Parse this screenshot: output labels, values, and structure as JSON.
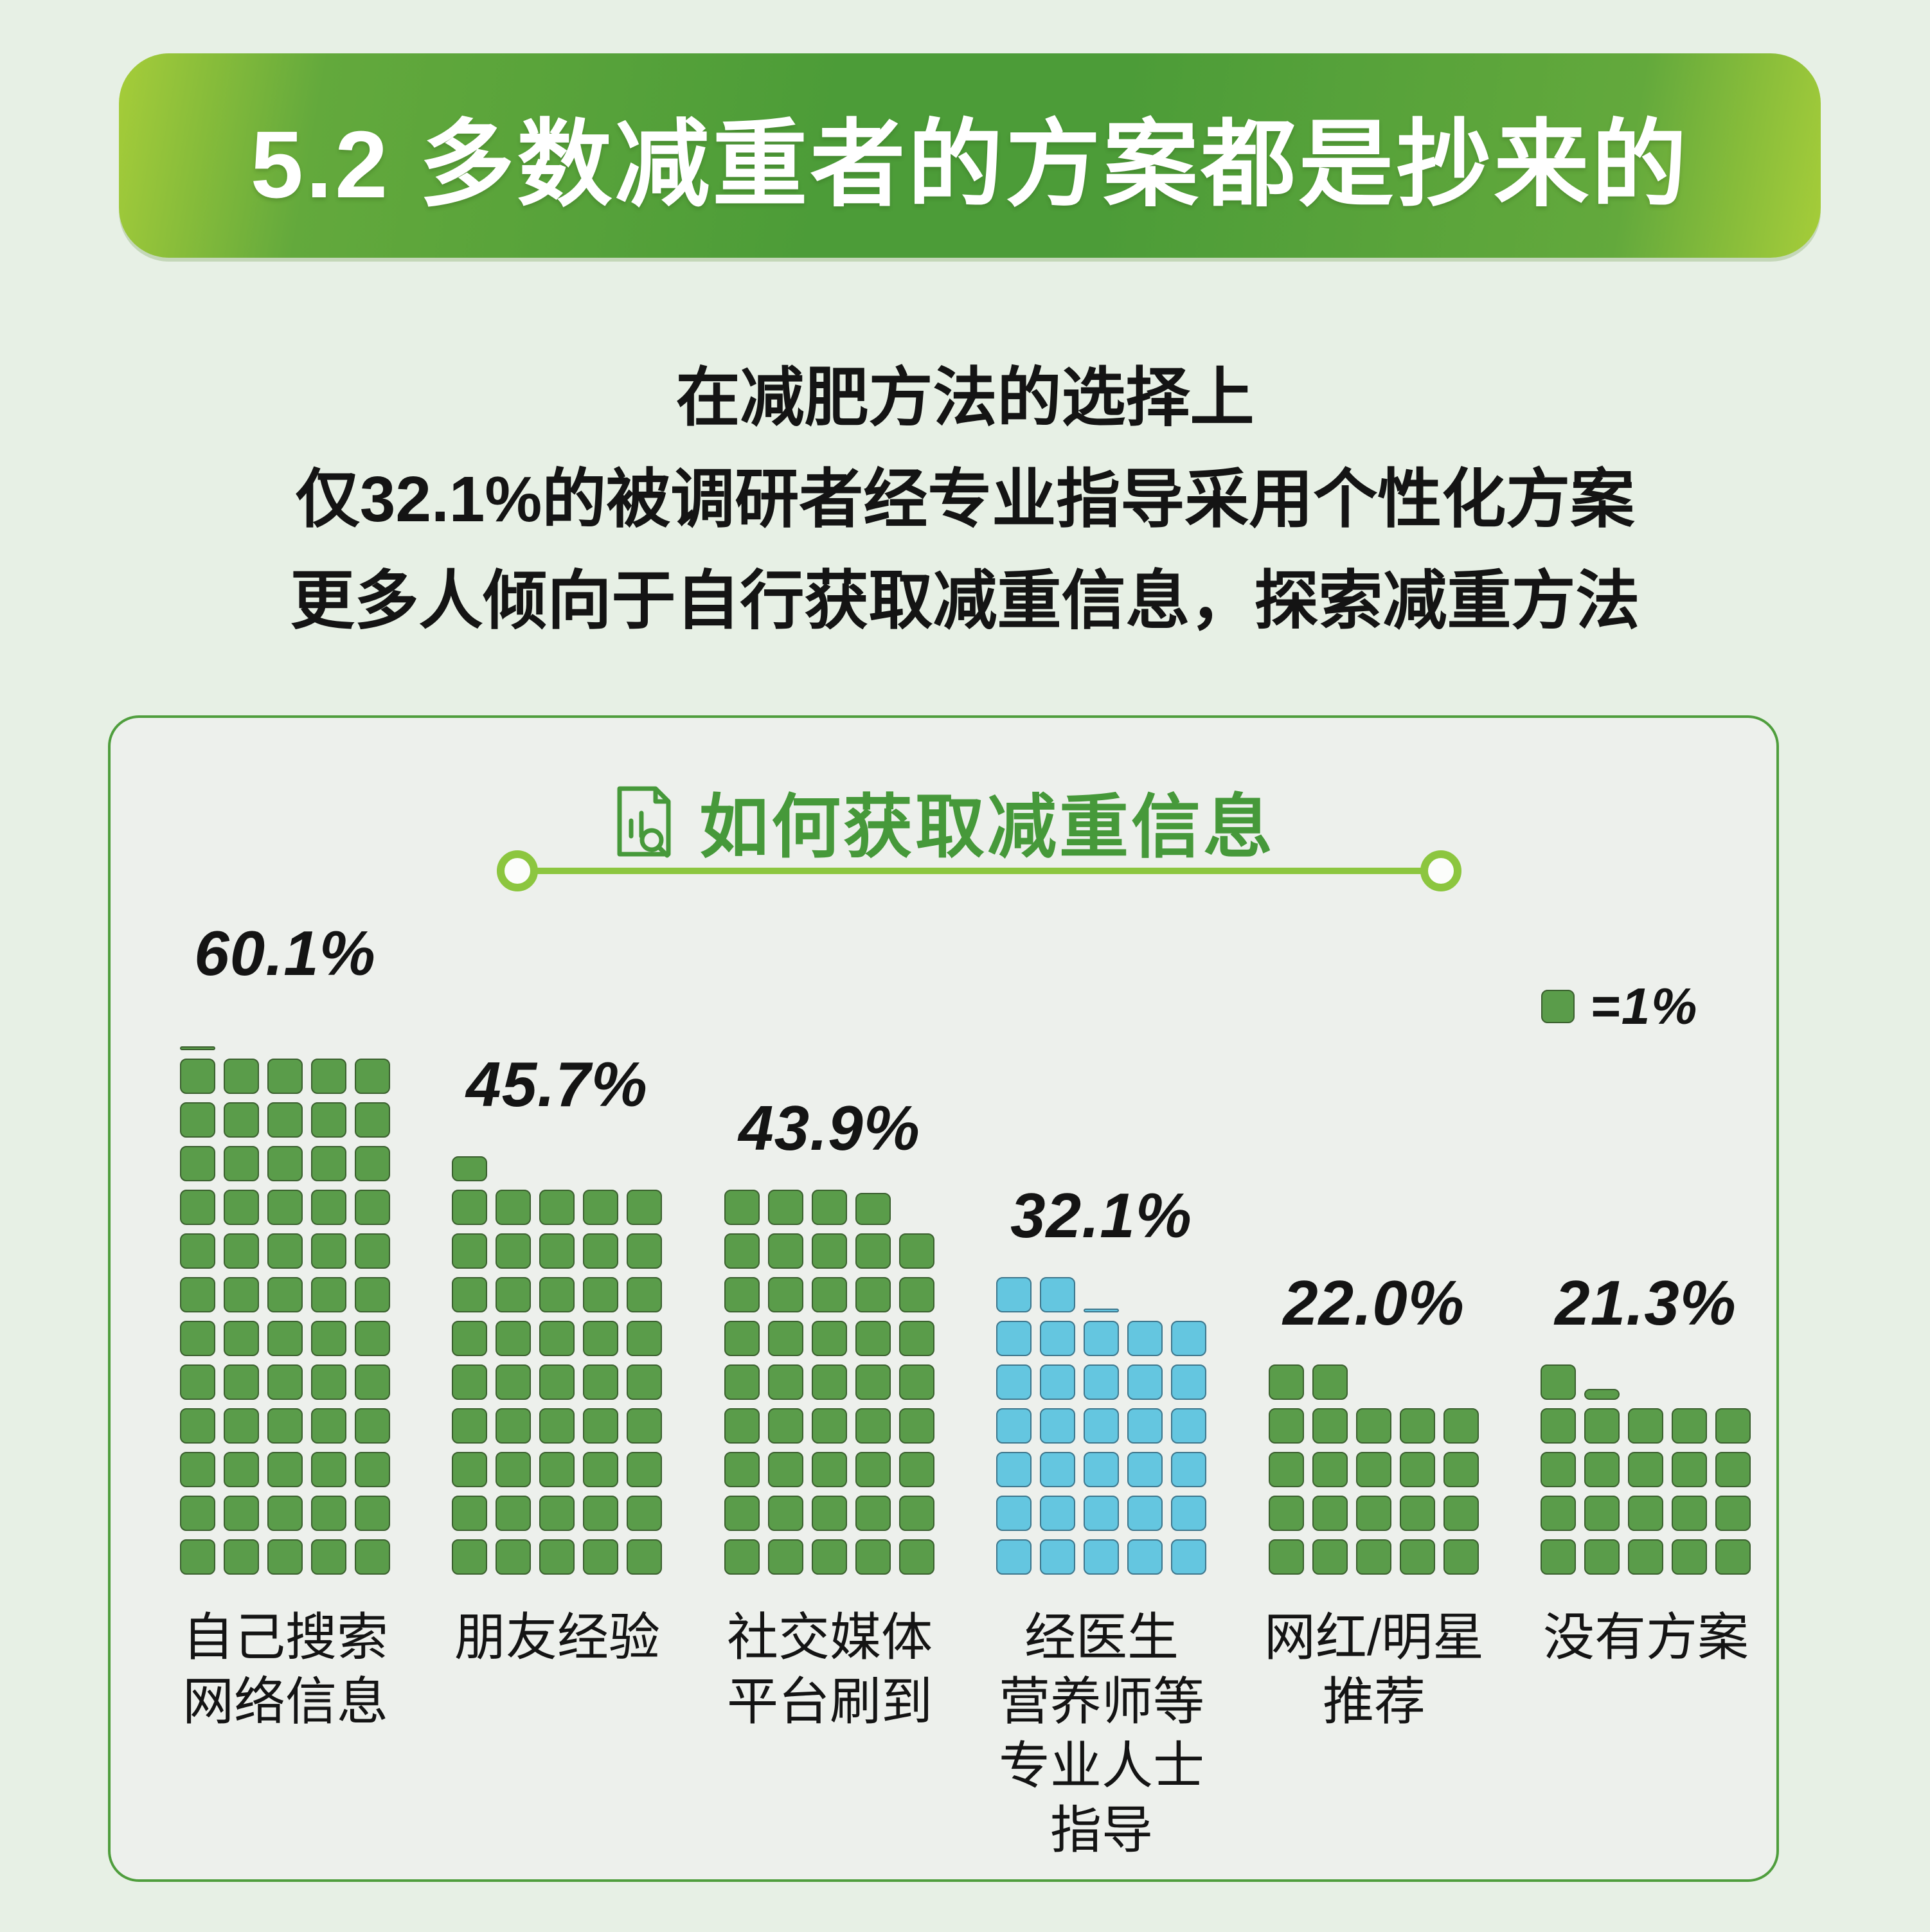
{
  "banner": {
    "title": "5.2 多数减重者的方案都是抄来的"
  },
  "subtitle": {
    "lines": [
      "在减肥方法的选择上",
      "仅32.1%的被调研者经专业指导采用个性化方案",
      "更多人倾向于自行获取减重信息，探索减重方法"
    ]
  },
  "chart_data": {
    "type": "waffle",
    "title": "如何获取减重信息",
    "legend": {
      "label": "=1%",
      "square_represents_percent": 1
    },
    "squares_per_row": 5,
    "categories": [
      "自己搜索\n网络信息",
      "朋友经验",
      "社交媒体\n平台刷到",
      "经医生\n营养师等\n专业人士\n指导",
      "网红/明星\n推荐",
      "没有方案"
    ],
    "values": [
      60.1,
      45.7,
      43.9,
      32.1,
      22.0,
      21.3
    ],
    "value_labels": [
      "60.1%",
      "45.7%",
      "43.9%",
      "32.1%",
      "22.0%",
      "21.3%"
    ],
    "highlight_index": 3,
    "colors": {
      "green_fill": "#5a9c4a",
      "green_border": "#3a5f2e",
      "blue_fill": "#64c6e0",
      "blue_border": "#3d768c"
    }
  }
}
